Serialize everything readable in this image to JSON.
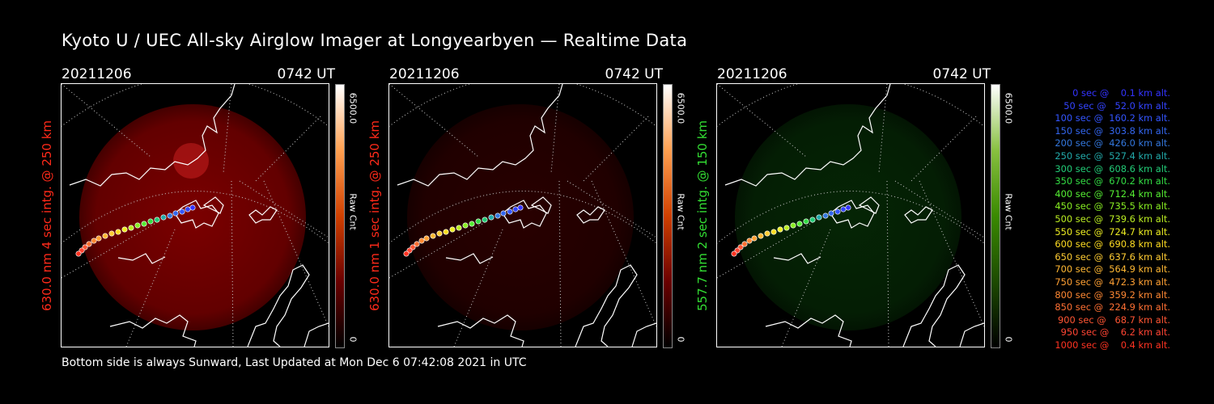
{
  "title": "Kyoto U / UEC All-sky Airglow Imager at Longyearbyen — Realtime Data",
  "panels": [
    {
      "date": "20211206",
      "time": "0742 UT",
      "side_label": "630.0 nm 4 sec intg. @ 250 km",
      "side_color": "#ff2a1a",
      "cbar_max": "6500.0",
      "cbar_min": "0",
      "cbar_label": "Raw Cnt",
      "glow_color": "#b00000",
      "glow_opacity": 0.7,
      "cbar_gradient": "red"
    },
    {
      "date": "20211206",
      "time": "0742 UT",
      "side_label": "630.0 nm 1 sec intg. @ 250 km",
      "side_color": "#ff2a1a",
      "cbar_max": "6500.0",
      "cbar_min": "0",
      "cbar_label": "Raw Cnt",
      "glow_color": "#5a0000",
      "glow_opacity": 0.45,
      "cbar_gradient": "red"
    },
    {
      "date": "20211206",
      "time": "0742 UT",
      "side_label": "557.7 nm 2 sec intg. @ 150 km",
      "side_color": "#33dd33",
      "cbar_max": "6500.0",
      "cbar_min": "0",
      "cbar_label": "Raw Cnt",
      "glow_color": "#0a4a0a",
      "glow_opacity": 0.5,
      "cbar_gradient": "green"
    }
  ],
  "footer": "Bottom side is always Sunward, Last Updated at Mon Dec  6 07:42:08 2021 in UTC",
  "legend": [
    {
      "text": "   0 sec @    0.1 km alt.",
      "color": "#3333ff"
    },
    {
      "text": "  50 sec @   52.0 km alt.",
      "color": "#3344ff"
    },
    {
      "text": " 100 sec @  160.2 km alt.",
      "color": "#3355ff"
    },
    {
      "text": " 150 sec @  303.8 km alt.",
      "color": "#3366ee"
    },
    {
      "text": " 200 sec @  426.0 km alt.",
      "color": "#3377dd"
    },
    {
      "text": " 250 sec @  527.4 km alt.",
      "color": "#22aaaa"
    },
    {
      "text": " 300 sec @  608.6 km alt.",
      "color": "#22cc77"
    },
    {
      "text": " 350 sec @  670.2 km alt.",
      "color": "#33dd44"
    },
    {
      "text": " 400 sec @  712.4 km alt.",
      "color": "#55ee33"
    },
    {
      "text": " 450 sec @  735.5 km alt.",
      "color": "#88ee22"
    },
    {
      "text": " 500 sec @  739.6 km alt.",
      "color": "#bbee22"
    },
    {
      "text": " 550 sec @  724.7 km alt.",
      "color": "#eeee22"
    },
    {
      "text": " 600 sec @  690.8 km alt.",
      "color": "#ffdd22"
    },
    {
      "text": " 650 sec @  637.6 km alt.",
      "color": "#ffcc33"
    },
    {
      "text": " 700 sec @  564.9 km alt.",
      "color": "#ffb833"
    },
    {
      "text": " 750 sec @  472.3 km alt.",
      "color": "#ffa033"
    },
    {
      "text": " 800 sec @  359.2 km alt.",
      "color": "#ff8833"
    },
    {
      "text": " 850 sec @  224.9 km alt.",
      "color": "#ff7033"
    },
    {
      "text": " 900 sec @   68.7 km alt.",
      "color": "#ff5533"
    },
    {
      "text": " 950 sec @    6.2 km alt.",
      "color": "#ff4433"
    },
    {
      "text": "1000 sec @    0.4 km alt.",
      "color": "#ff3322"
    }
  ]
}
